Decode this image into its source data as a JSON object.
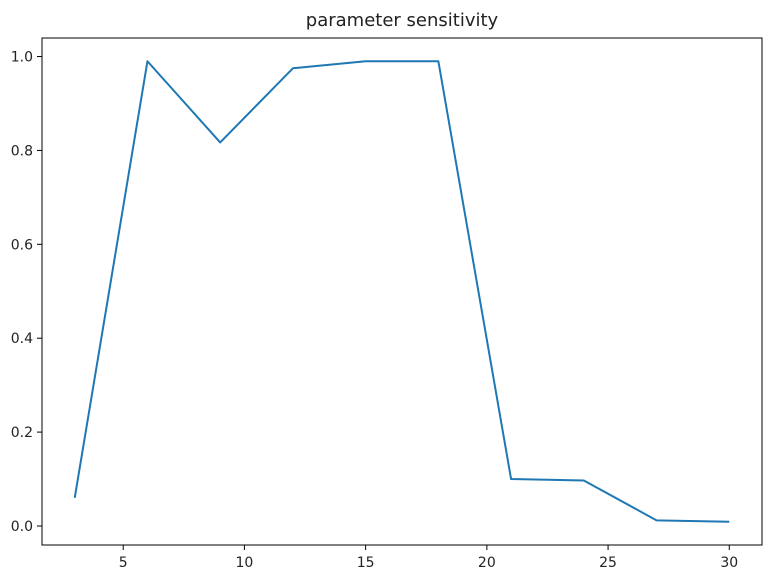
{
  "chart_data": {
    "type": "line",
    "title": "parameter sensitivity",
    "xlabel": "",
    "ylabel": "",
    "x": [
      3,
      6,
      9,
      12,
      15,
      18,
      21,
      24,
      27,
      30
    ],
    "series": [
      {
        "values": [
          0.06,
          0.99,
          0.817,
          0.975,
          0.99,
          0.99,
          0.1,
          0.097,
          0.012,
          0.009
        ],
        "color": "#1f77b4"
      }
    ],
    "xlim": [
      1.65,
      31.35
    ],
    "ylim": [
      -0.0405,
      1.0395
    ],
    "xticks": [
      5,
      10,
      15,
      20,
      25,
      30
    ],
    "xtick_labels": [
      "5",
      "10",
      "15",
      "20",
      "25",
      "30"
    ],
    "yticks": [
      0.0,
      0.2,
      0.4,
      0.6,
      0.8,
      1.0
    ],
    "ytick_labels": [
      "0.0",
      "0.2",
      "0.4",
      "0.6",
      "0.8",
      "1.0"
    ],
    "grid": false,
    "legend": "none"
  }
}
